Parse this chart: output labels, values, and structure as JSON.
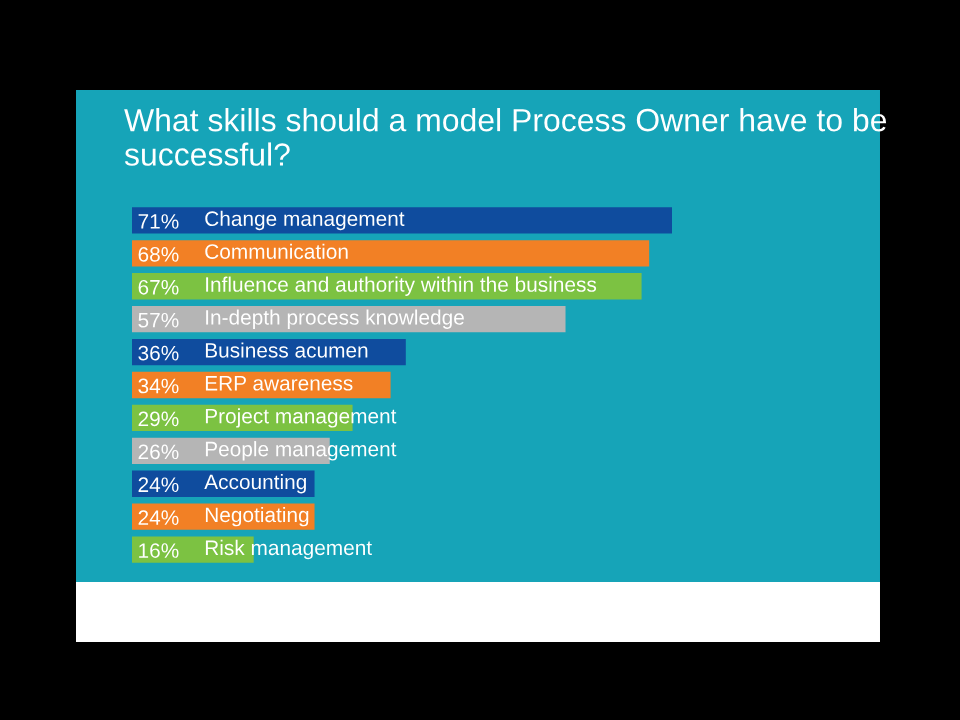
{
  "chart_data": {
    "type": "bar",
    "orientation": "horizontal",
    "title": "What skills should a model Process Owner have to be successful?",
    "categories": [
      "Change management",
      "Communication",
      "Influence and authority within the business",
      "In-depth process knowledge",
      "Business acumen",
      "ERP awareness",
      "Project management",
      "People management",
      "Accounting",
      "Negotiating",
      "Risk management"
    ],
    "values": [
      71,
      68,
      67,
      57,
      36,
      34,
      29,
      26,
      24,
      24,
      16
    ],
    "value_labels": [
      "71%",
      "68%",
      "67%",
      "57%",
      "36%",
      "34%",
      "29%",
      "26%",
      "24%",
      "24%",
      "16%"
    ],
    "colors": [
      "#0f4c9e",
      "#f28025",
      "#7cc242",
      "#b5b5b5",
      "#0f4c9e",
      "#f28025",
      "#7cc242",
      "#b5b5b5",
      "#0f4c9e",
      "#f28025",
      "#7cc242"
    ],
    "legend": false
  }
}
